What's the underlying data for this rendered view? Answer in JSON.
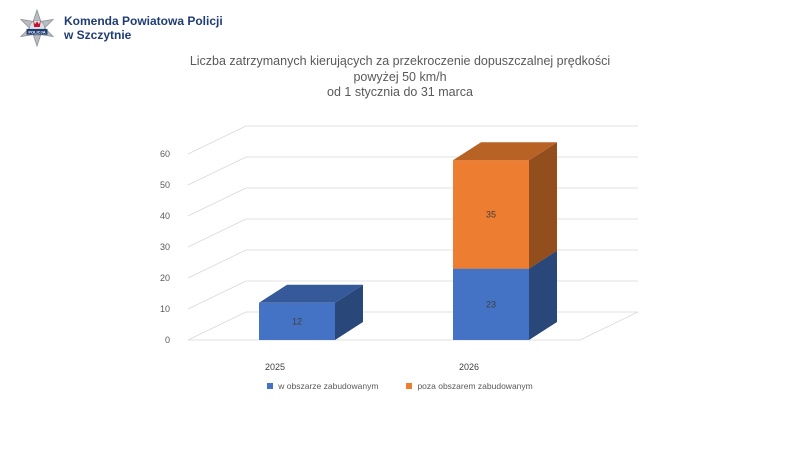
{
  "header": {
    "org_line1": "Komenda Powiatowa Policji",
    "org_line2": "w Szczytnie",
    "badge_text": "POLICJA"
  },
  "chart_data": {
    "type": "bar",
    "stacked": true,
    "three_d": true,
    "title_lines": [
      "Liczba zatrzymanych kierujących za przekroczenie  dopuszczalnej prędkości",
      "powyżej 50 km/h",
      "od 1 stycznia do 31 marca"
    ],
    "categories": [
      "2025",
      "2026"
    ],
    "series": [
      {
        "name": "w obszarze zabudowanym",
        "values": [
          12,
          23
        ],
        "color": "#4472c4"
      },
      {
        "name": "poza obszarem zabudowanym",
        "values": [
          0,
          35
        ],
        "color": "#ed7d31"
      }
    ],
    "ylim": [
      0,
      60
    ],
    "yticks": [
      "0",
      "10",
      "20",
      "30",
      "40",
      "50",
      "60"
    ],
    "grid": true,
    "legend_position": "bottom"
  }
}
